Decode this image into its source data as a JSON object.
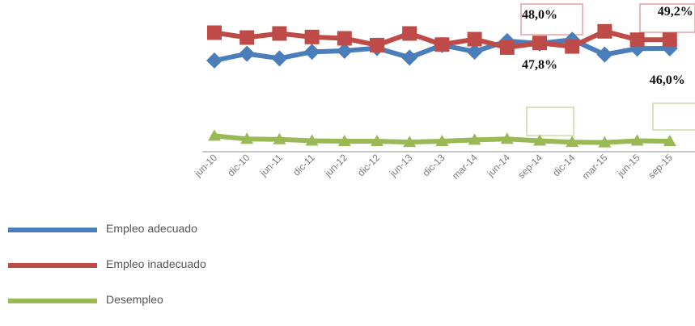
{
  "chart_data": {
    "type": "line",
    "title": "",
    "xlabel": "",
    "ylabel": "",
    "categories": [
      "jun-10",
      "dic-10",
      "jun-11",
      "dic-11",
      "jun-12",
      "dic-12",
      "jun-13",
      "dic-13",
      "mar-14",
      "jun-14",
      "sep-14",
      "dic-14",
      "mar-15",
      "jun-15",
      "sep-15"
    ],
    "series": [
      {
        "name": "Empleo adecuado",
        "color": "#4a7ebb",
        "marker": "diamond",
        "values": [
          41.5,
          44.0,
          42.3,
          44.7,
          45.1,
          46.1,
          42.6,
          47.2,
          44.8,
          48.7,
          47.8,
          49.2,
          43.7,
          45.9,
          46.0
        ]
      },
      {
        "name": "Empleo inadecuado",
        "color": "#be4b48",
        "marker": "square",
        "values": [
          51.8,
          50.0,
          51.5,
          50.2,
          49.7,
          47.2,
          51.5,
          47.4,
          49.4,
          46.3,
          48.0,
          46.7,
          52.3,
          49.2,
          49.2
        ]
      },
      {
        "name": "Desempleo",
        "color": "#98b954",
        "marker": "triangle",
        "values": [
          5.0,
          4.3,
          4.2,
          3.9,
          3.8,
          3.8,
          3.6,
          3.8,
          4.1,
          4.3,
          3.9,
          3.6,
          3.5,
          3.9,
          3.8
        ]
      }
    ],
    "data_labels": [
      {
        "series": "Empleo inadecuado",
        "category": "sep-14",
        "text": "48,0%"
      },
      {
        "series": "Empleo inadecuado",
        "category": "sep-15",
        "text": "49,2%"
      },
      {
        "series": "Empleo adecuado",
        "category": "sep-14",
        "text": "47,8%"
      },
      {
        "series": "Empleo adecuado",
        "category": "sep-15",
        "text": "46,0%"
      }
    ],
    "grid": false,
    "legend_position": "bottom-left"
  }
}
